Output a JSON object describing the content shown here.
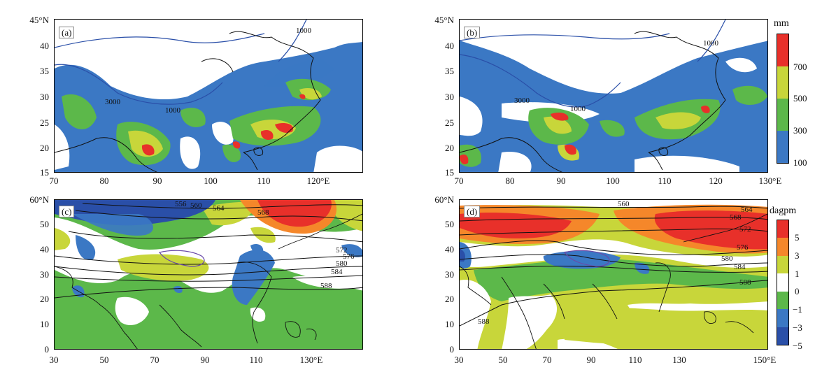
{
  "colors": {
    "red": "#e8302a",
    "orange": "#f5872a",
    "yellowgreen": "#c8d63a",
    "green": "#5cb84a",
    "blue": "#3b78c4",
    "darkblue": "#2a4fa8",
    "white": "#ffffff",
    "contour_blue": "#2a4fa8",
    "coast": "#111111"
  },
  "panels": {
    "a": {
      "label": "(a)",
      "yticks": [
        "45°N",
        "40",
        "35",
        "30",
        "25",
        "20",
        "15"
      ],
      "xticks": [
        "70",
        "80",
        "90",
        "100",
        "110",
        "120°E"
      ],
      "contour_labels": [
        "3000",
        "1000",
        "1000"
      ]
    },
    "b": {
      "label": "(b)",
      "yticks": [
        "45°N",
        "40",
        "35",
        "30",
        "25",
        "20",
        "15"
      ],
      "xticks": [
        "70",
        "80",
        "90",
        "100",
        "110",
        "120",
        "130°E"
      ],
      "contour_labels": [
        "3000",
        "1000",
        "1000"
      ]
    },
    "c": {
      "label": "(c)",
      "yticks": [
        "60°N",
        "50",
        "40",
        "30",
        "20",
        "10",
        "0"
      ],
      "xticks": [
        "30",
        "50",
        "70",
        "90",
        "110",
        "130°E"
      ],
      "contour_labels": [
        "556",
        "560",
        "564",
        "568",
        "572",
        "576",
        "580",
        "584",
        "588"
      ]
    },
    "d": {
      "label": "(d)",
      "yticks": [
        "60°N",
        "50",
        "40",
        "30",
        "20",
        "10",
        "0"
      ],
      "xticks": [
        "30",
        "50",
        "70",
        "90",
        "110",
        "130",
        "150°E"
      ],
      "contour_labels": [
        "560",
        "564",
        "568",
        "572",
        "576",
        "580",
        "584",
        "588",
        "588"
      ]
    }
  },
  "colorbar_precip": {
    "unit": "mm",
    "ticks": [
      "700",
      "500",
      "300",
      "100"
    ],
    "segment_colors": [
      "#e8302a",
      "#c8d63a",
      "#5cb84a",
      "#3b78c4"
    ]
  },
  "colorbar_height": {
    "unit": "dagpm",
    "ticks": [
      "5",
      "3",
      "1",
      "0",
      "−1",
      "−3",
      "−5"
    ],
    "segment_colors": [
      "#e8302a",
      "#f5872a",
      "#c8d63a",
      "#ffffff",
      "#5cb84a",
      "#3b78c4",
      "#2a4fa8"
    ]
  }
}
